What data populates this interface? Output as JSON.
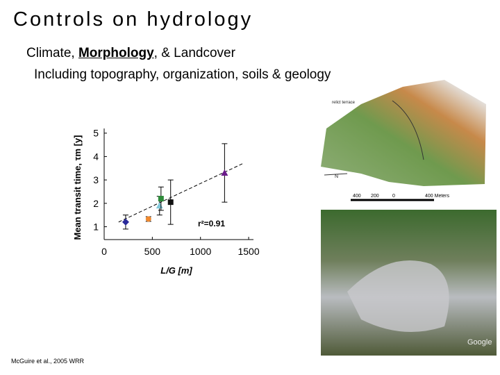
{
  "title": "Controls on hydrology",
  "bullets": [
    [
      "Climate, ",
      "Morphology",
      ", & Landcover"
    ],
    "Including topography, organization, soils & geology"
  ],
  "citation": "McGuire et al., 2005 WRR",
  "map_labels": {
    "terrace": "relict terrace",
    "north": "N",
    "scale": [
      "400",
      "200",
      "0",
      "400 Meters"
    ]
  },
  "photo_label": "Google",
  "chart_data": {
    "type": "scatter",
    "xlabel": "L/G [m]",
    "ylabel": "Mean transit time, τm [y]",
    "xlim": [
      0,
      1550
    ],
    "ylim": [
      0.45,
      5.2
    ],
    "xticks": [
      0,
      500,
      1000,
      1500
    ],
    "yticks": [
      1,
      2,
      3,
      4,
      5
    ],
    "annotation": "r²=0.91",
    "series": [
      {
        "marker": "diamond",
        "color": "#2a2a9a",
        "x": [
          223
        ],
        "values": [
          1.2
        ],
        "errors": [
          0.3
        ]
      },
      {
        "marker": "circle",
        "color": "#f08a30",
        "x": [
          460
        ],
        "values": [
          1.33
        ],
        "errors": [
          0.1
        ]
      },
      {
        "marker": "triangle",
        "color": "#7fc6d8",
        "x": [
          575
        ],
        "values": [
          1.9
        ],
        "errors": [
          0.4
        ]
      },
      {
        "marker": "square",
        "color": "#2e8b3a",
        "x": [
          590
        ],
        "values": [
          2.2
        ],
        "errors": [
          0.5
        ]
      },
      {
        "marker": "square",
        "color": "#111111",
        "x": [
          690
        ],
        "values": [
          2.05
        ],
        "errors": [
          0.95
        ]
      },
      {
        "marker": "triangle",
        "color": "#6a1a8a",
        "x": [
          1250
        ],
        "values": [
          3.3
        ],
        "errors": [
          1.25
        ]
      }
    ],
    "fit": {
      "x": [
        150,
        1450
      ],
      "values": [
        1.2,
        3.72
      ]
    }
  }
}
